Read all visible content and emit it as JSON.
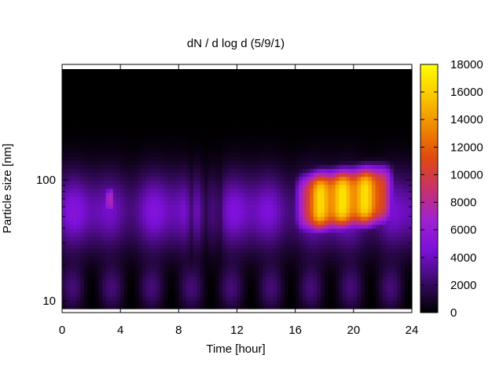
{
  "chart_data": {
    "type": "heatmap",
    "title": "dN / d log d (5/9/1)",
    "xlabel": "Time [hour]",
    "ylabel": "Particle size [nm]",
    "xlim": [
      0,
      24
    ],
    "ylim_nm": [
      8,
      900
    ],
    "y_scale": "log",
    "x_ticks": [
      "0",
      "4",
      "8",
      "12",
      "16",
      "20",
      "24"
    ],
    "y_ticks": [
      "10",
      "100"
    ],
    "colorbar": {
      "range": [
        0,
        18000
      ],
      "ticks": [
        "0",
        "2000",
        "4000",
        "6000",
        "8000",
        "10000",
        "12000",
        "14000",
        "16000",
        "18000"
      ],
      "palette": [
        "#000000",
        "#3a0a66",
        "#7c10d8",
        "#a022d0",
        "#c8326a",
        "#e04a10",
        "#f08a00",
        "#fbc800",
        "#ffff00"
      ]
    },
    "features": [
      {
        "hour_range": [
          16.3,
          22.5
        ],
        "size_range_nm": [
          40,
          120
        ],
        "peak_value": 17000
      },
      {
        "hour_range": [
          3,
          3.6
        ],
        "size_range_nm": [
          55,
          85
        ],
        "peak_value": 7500
      }
    ],
    "grid": false
  }
}
